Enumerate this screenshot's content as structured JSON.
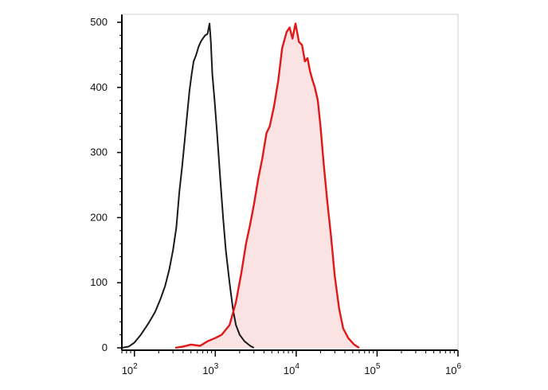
{
  "chart_data": {
    "type": "area",
    "title": "",
    "xlabel": "",
    "ylabel": "",
    "x_scale": "log",
    "xlim": [
      70,
      1000000
    ],
    "ylim": [
      0,
      500
    ],
    "x_ticks": [
      {
        "base": "10",
        "exp": "2",
        "value": 100
      },
      {
        "base": "10",
        "exp": "3",
        "value": 1000
      },
      {
        "base": "10",
        "exp": "4",
        "value": 10000
      },
      {
        "base": "10",
        "exp": "5",
        "value": 100000
      },
      {
        "base": "10",
        "exp": "6",
        "value": 1000000
      }
    ],
    "y_ticks": [
      "0",
      "100",
      "200",
      "300",
      "400",
      "500"
    ],
    "y_tick_values": [
      0,
      100,
      200,
      300,
      400,
      500
    ],
    "grid": false,
    "legend": "none",
    "colors": {
      "control": "#1a1a1a",
      "stained_line": "#e01818",
      "stained_fill": "#fbe3e3",
      "axis": "#000000"
    },
    "series": [
      {
        "style": "line",
        "color": "#1a1a1a",
        "points": [
          [
            70,
            0
          ],
          [
            85,
            2
          ],
          [
            100,
            8
          ],
          [
            120,
            20
          ],
          [
            150,
            38
          ],
          [
            180,
            55
          ],
          [
            210,
            75
          ],
          [
            240,
            95
          ],
          [
            270,
            120
          ],
          [
            300,
            150
          ],
          [
            330,
            185
          ],
          [
            360,
            240
          ],
          [
            390,
            280
          ],
          [
            420,
            320
          ],
          [
            450,
            360
          ],
          [
            480,
            395
          ],
          [
            510,
            420
          ],
          [
            540,
            440
          ],
          [
            580,
            450
          ],
          [
            620,
            462
          ],
          [
            660,
            470
          ],
          [
            700,
            475
          ],
          [
            750,
            480
          ],
          [
            800,
            482
          ],
          [
            850,
            498
          ],
          [
            880,
            470
          ],
          [
            920,
            420
          ],
          [
            980,
            380
          ],
          [
            1050,
            330
          ],
          [
            1150,
            260
          ],
          [
            1250,
            200
          ],
          [
            1350,
            150
          ],
          [
            1500,
            100
          ],
          [
            1650,
            60
          ],
          [
            1800,
            35
          ],
          [
            2000,
            20
          ],
          [
            2300,
            10
          ],
          [
            2700,
            3
          ],
          [
            3000,
            0
          ]
        ]
      },
      {
        "style": "filled-line",
        "color": "#e01818",
        "fill": "#fbe3e3",
        "points": [
          [
            320,
            0
          ],
          [
            400,
            2
          ],
          [
            500,
            5
          ],
          [
            650,
            3
          ],
          [
            800,
            10
          ],
          [
            1000,
            15
          ],
          [
            1200,
            20
          ],
          [
            1500,
            35
          ],
          [
            1800,
            70
          ],
          [
            2100,
            115
          ],
          [
            2400,
            160
          ],
          [
            2700,
            190
          ],
          [
            3000,
            220
          ],
          [
            3400,
            260
          ],
          [
            3800,
            290
          ],
          [
            4300,
            330
          ],
          [
            4700,
            340
          ],
          [
            5300,
            370
          ],
          [
            6000,
            410
          ],
          [
            6700,
            460
          ],
          [
            7600,
            485
          ],
          [
            8300,
            492
          ],
          [
            9000,
            475
          ],
          [
            9800,
            498
          ],
          [
            10800,
            470
          ],
          [
            11800,
            465
          ],
          [
            12800,
            440
          ],
          [
            13800,
            445
          ],
          [
            14800,
            425
          ],
          [
            16000,
            410
          ],
          [
            17000,
            400
          ],
          [
            18500,
            380
          ],
          [
            20000,
            340
          ],
          [
            22000,
            280
          ],
          [
            24000,
            230
          ],
          [
            27000,
            170
          ],
          [
            30000,
            110
          ],
          [
            34000,
            60
          ],
          [
            38000,
            30
          ],
          [
            44000,
            15
          ],
          [
            52000,
            5
          ],
          [
            60000,
            0
          ]
        ]
      }
    ]
  }
}
